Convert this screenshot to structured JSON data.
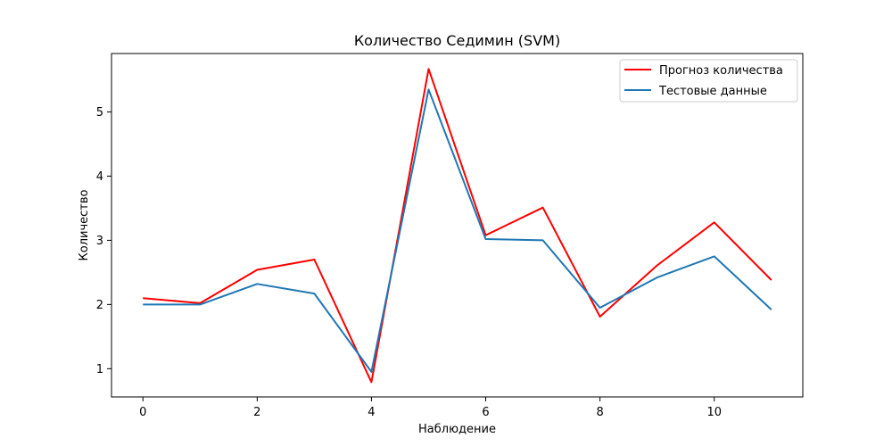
{
  "chart_data": {
    "type": "line",
    "title": "Количество Седимин (SVM)",
    "xlabel": "Наблюдение",
    "ylabel": "Количество",
    "x": [
      0,
      1,
      2,
      3,
      4,
      5,
      6,
      7,
      8,
      9,
      10,
      11
    ],
    "xlim": [
      -0.55,
      11.55
    ],
    "ylim": [
      0.56,
      5.91
    ],
    "xticks": [
      0,
      2,
      4,
      6,
      8,
      10
    ],
    "yticks": [
      1,
      2,
      3,
      4,
      5
    ],
    "grid": false,
    "legend_position": "top-right",
    "series": [
      {
        "name": "Прогноз количества",
        "color": "#ff0000",
        "values": [
          2.1,
          2.02,
          2.54,
          2.7,
          0.79,
          5.67,
          3.08,
          3.51,
          1.81,
          2.61,
          3.28,
          2.38
        ]
      },
      {
        "name": "Тестовые данные",
        "color": "#1f77b4",
        "values": [
          2.0,
          2.0,
          2.32,
          2.17,
          0.95,
          5.35,
          3.02,
          3.0,
          1.95,
          2.42,
          2.75,
          1.92
        ]
      }
    ]
  }
}
